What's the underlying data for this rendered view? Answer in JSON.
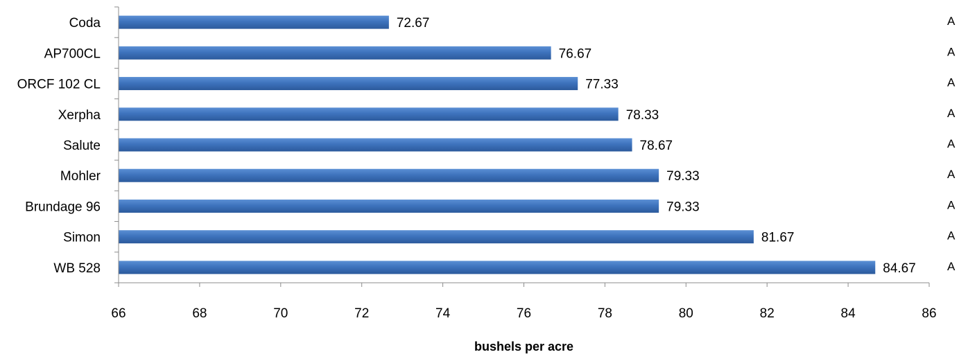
{
  "chart_data": {
    "type": "bar",
    "orientation": "horizontal",
    "categories": [
      "Coda",
      "AP700CL",
      "ORCF 102 CL",
      "Xerpha",
      "Salute",
      "Mohler",
      "Brundage 96",
      "Simon",
      "WB 528"
    ],
    "values": [
      72.67,
      76.67,
      77.33,
      78.33,
      78.67,
      79.33,
      79.33,
      81.67,
      84.67
    ],
    "data_labels": [
      "72.67",
      "76.67",
      "77.33",
      "78.33",
      "78.67",
      "79.33",
      "79.33",
      "81.67",
      "84.67"
    ],
    "group_letters": [
      "A",
      "A",
      "A",
      "A",
      "A",
      "A",
      "A",
      "A",
      "A"
    ],
    "xlabel": "bushels per acre",
    "ylabel": "",
    "title": "",
    "xlim": [
      66,
      86
    ],
    "xticks": [
      66,
      68,
      70,
      72,
      74,
      76,
      78,
      80,
      82,
      84,
      86
    ],
    "grid": false,
    "legend": "none",
    "bar_color": "#3e73bd",
    "bar_color_light": "#5b8fd4",
    "bar_color_dark": "#2c5a9c"
  }
}
